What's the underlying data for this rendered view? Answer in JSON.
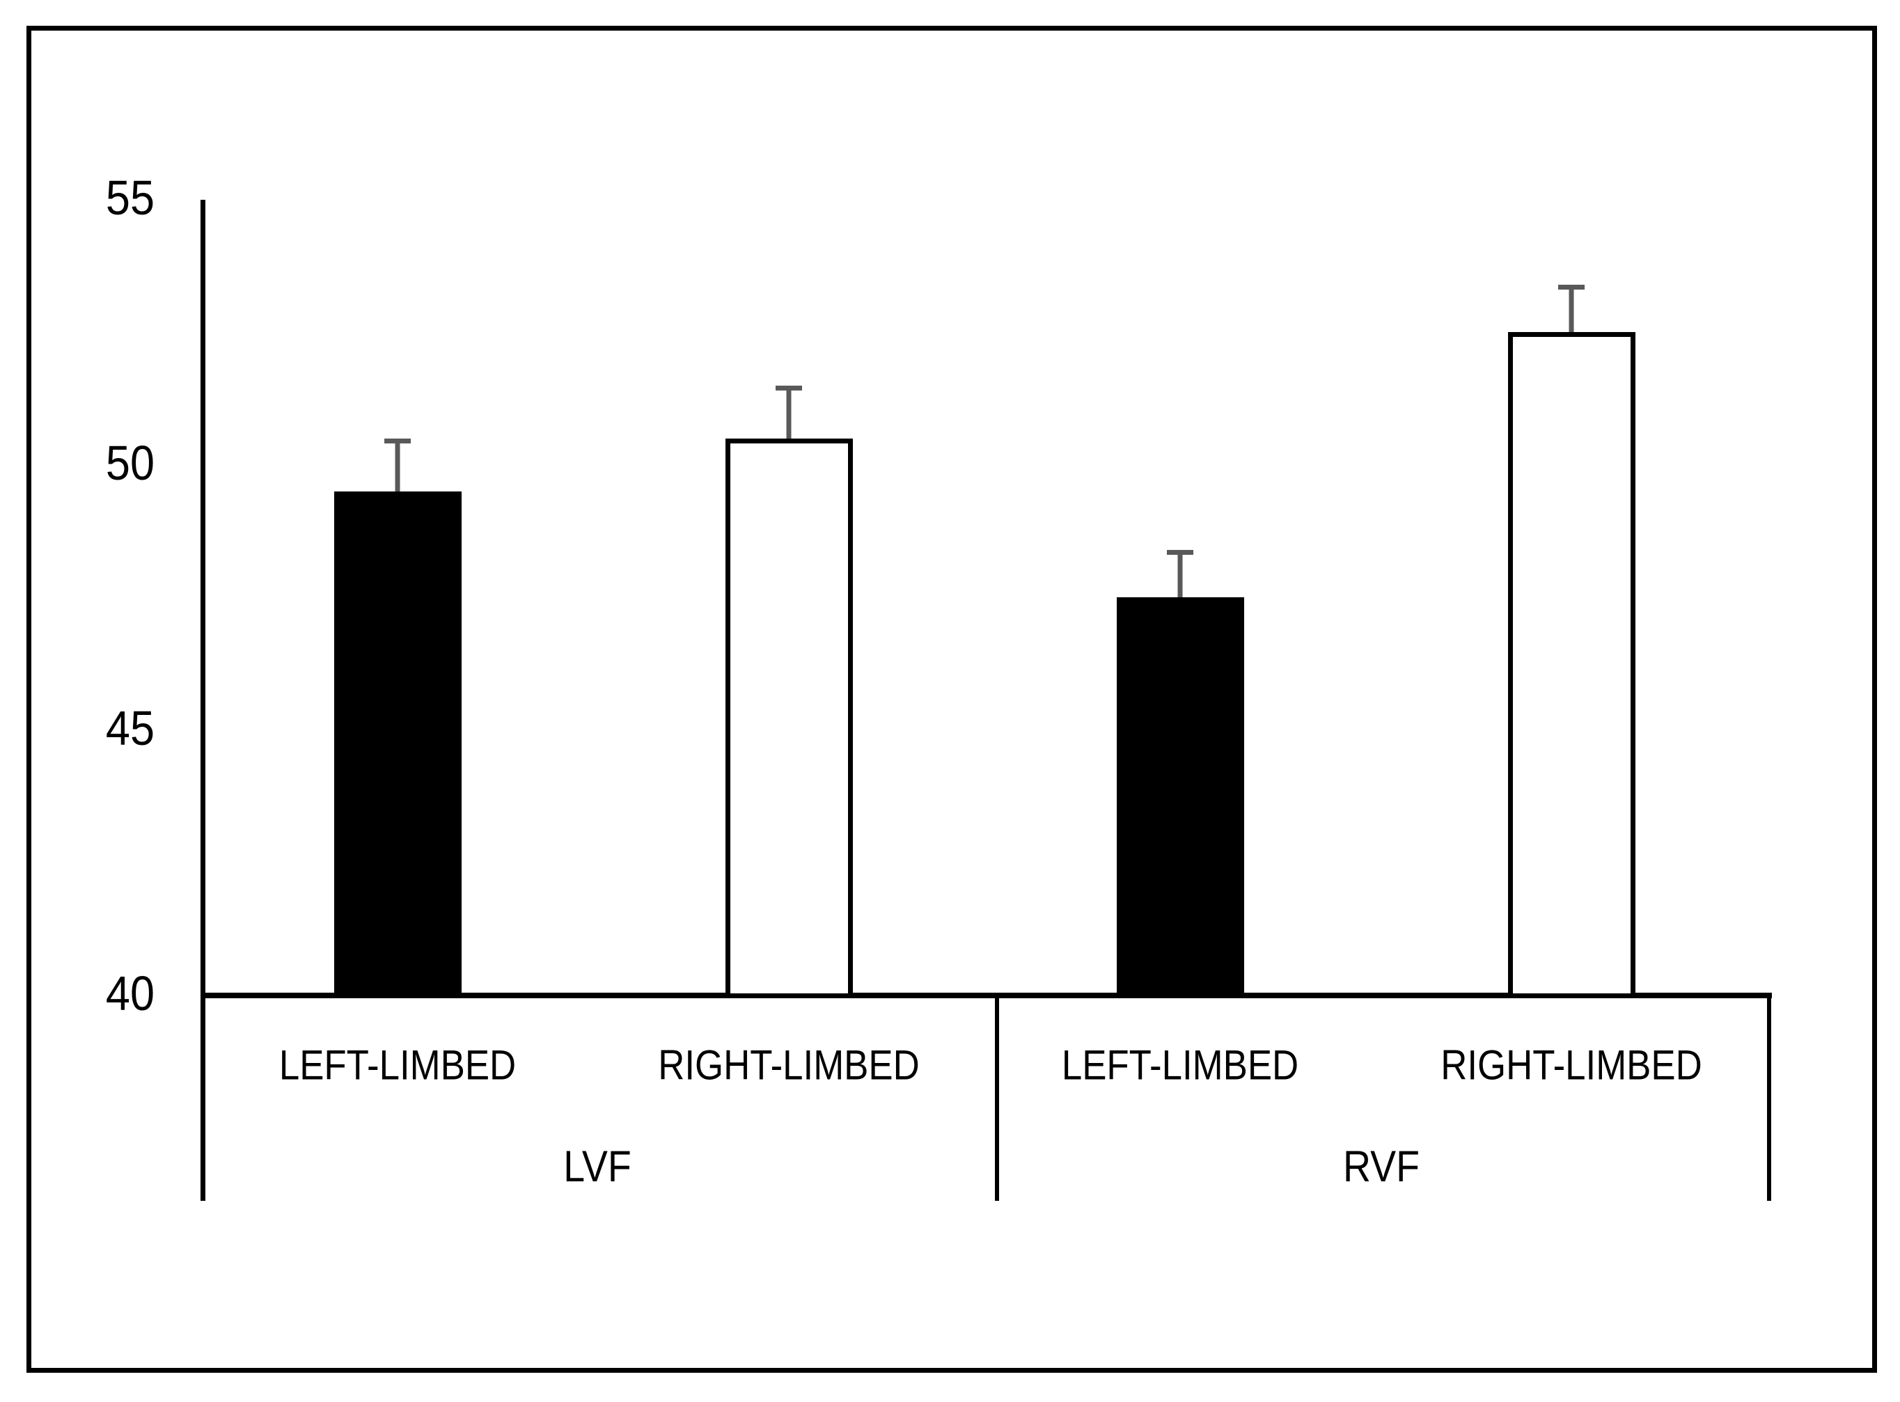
{
  "figure": {
    "background_color": "#ffffff",
    "border_color": "#000000"
  },
  "chart_data": {
    "type": "bar",
    "title": "",
    "xlabel": "",
    "ylabel": "",
    "ylim": [
      40,
      55
    ],
    "yticks": [
      55,
      50,
      45,
      40
    ],
    "grid": false,
    "legend": "none",
    "error_bar_color": "#595959",
    "bar_outline_color": "#000000",
    "groups": [
      {
        "label": "LVF",
        "bars": [
          {
            "category": "LEFT-LIMBED",
            "value": 49.5,
            "error": 1.0,
            "fill": "black"
          },
          {
            "category": "RIGHT-LIMBED",
            "value": 50.5,
            "error": 1.0,
            "fill": "white"
          }
        ]
      },
      {
        "label": "RVF",
        "bars": [
          {
            "category": "LEFT-LIMBED",
            "value": 47.5,
            "error": 0.9,
            "fill": "black"
          },
          {
            "category": "RIGHT-LIMBED",
            "value": 52.5,
            "error": 0.9,
            "fill": "white"
          }
        ]
      }
    ]
  }
}
